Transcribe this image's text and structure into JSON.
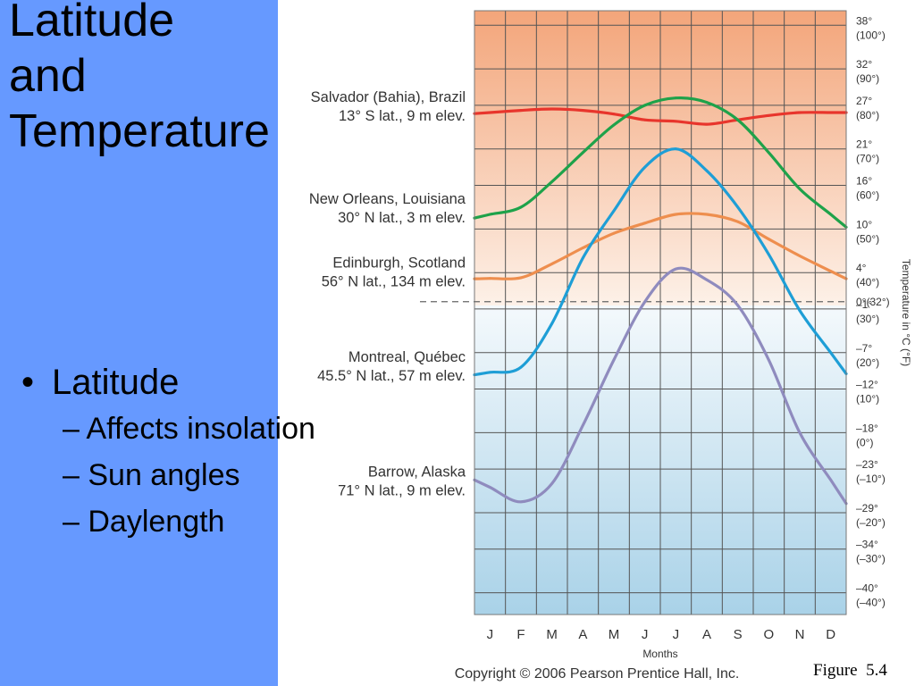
{
  "slide": {
    "title_lines": [
      "Latitude",
      "and",
      "Temperature"
    ],
    "bullet": "Latitude",
    "sub_bullets": [
      "– Affects insolation",
      "– Sun angles",
      "– Daylength"
    ],
    "figure_label": "Figure  5.4"
  },
  "chart_data": {
    "type": "line",
    "xlabel": "Months",
    "ylabel": "Temperature in °C (°F)",
    "categories": [
      "J",
      "F",
      "M",
      "A",
      "M",
      "J",
      "J",
      "A",
      "S",
      "O",
      "N",
      "D"
    ],
    "ylim": [
      -43,
      40
    ],
    "y_ticks": [
      {
        "c": 38,
        "label_c": "38°",
        "label_f": "(100°)"
      },
      {
        "c": 32,
        "label_c": "32°",
        "label_f": "(90°)"
      },
      {
        "c": 27,
        "label_c": "27°",
        "label_f": "(80°)"
      },
      {
        "c": 21,
        "label_c": "21°",
        "label_f": "(70°)"
      },
      {
        "c": 16,
        "label_c": "16°",
        "label_f": "(60°)"
      },
      {
        "c": 10,
        "label_c": "10°",
        "label_f": "(50°)"
      },
      {
        "c": 4,
        "label_c": "4°",
        "label_f": "(40°)"
      },
      {
        "c": 0,
        "label_c": "0°(32°)",
        "label_f": ""
      },
      {
        "c": -1,
        "label_c": "–1°",
        "label_f": "(30°)"
      },
      {
        "c": -7,
        "label_c": "–7°",
        "label_f": "(20°)"
      },
      {
        "c": -12,
        "label_c": "–12°",
        "label_f": "(10°)"
      },
      {
        "c": -18,
        "label_c": "–18°",
        "label_f": "(0°)"
      },
      {
        "c": -23,
        "label_c": "–23°",
        "label_f": "(–10°)"
      },
      {
        "c": -29,
        "label_c": "–29°",
        "label_f": "(–20°)"
      },
      {
        "c": -34,
        "label_c": "–34°",
        "label_f": "(–30°)"
      },
      {
        "c": -40,
        "label_c": "–40°",
        "label_f": "(–40°)"
      }
    ],
    "freezing_line_c": 0,
    "grid": true,
    "series": [
      {
        "name": "Salvador (Bahia), Brazil",
        "detail": "13° S lat., 9 m elev.",
        "color": "#e8352c",
        "values": [
          26.0,
          26.3,
          26.5,
          26.3,
          25.8,
          25.0,
          24.8,
          24.4,
          25.0,
          25.6,
          26.0,
          26.0
        ]
      },
      {
        "name": "New Orleans, Louisiana",
        "detail": "30° N lat., 3 m elev.",
        "color": "#1ea24a",
        "values": [
          12.0,
          13.0,
          16.5,
          20.5,
          24.3,
          27.0,
          28.0,
          27.4,
          25.0,
          20.5,
          15.5,
          12.0
        ]
      },
      {
        "name": "Edinburgh, Scotland",
        "detail": "56° N lat., 134 m elev.",
        "color": "#ee8e4e",
        "values": [
          3.2,
          3.3,
          5.2,
          7.4,
          9.4,
          10.8,
          12.0,
          12.0,
          11.0,
          8.6,
          6.3,
          4.2
        ]
      },
      {
        "name": "Montreal, Québec",
        "detail": "45.5° N lat., 57 m elev.",
        "color": "#1e9ed6",
        "values": [
          -9.7,
          -9.0,
          -3.0,
          6.0,
          12.5,
          18.5,
          21.0,
          18.0,
          13.0,
          6.5,
          -1.2,
          -7.0
        ]
      },
      {
        "name": "Barrow, Alaska",
        "detail": "71° N lat., 9 m elev.",
        "color": "#8f8bbe",
        "values": [
          -25.5,
          -27.5,
          -25.0,
          -17.0,
          -8.0,
          0.0,
          4.5,
          3.0,
          -0.5,
          -8.0,
          -18.0,
          -24.5
        ]
      }
    ],
    "copyright": "Copyright © 2006 Pearson Prentice Hall, Inc."
  }
}
